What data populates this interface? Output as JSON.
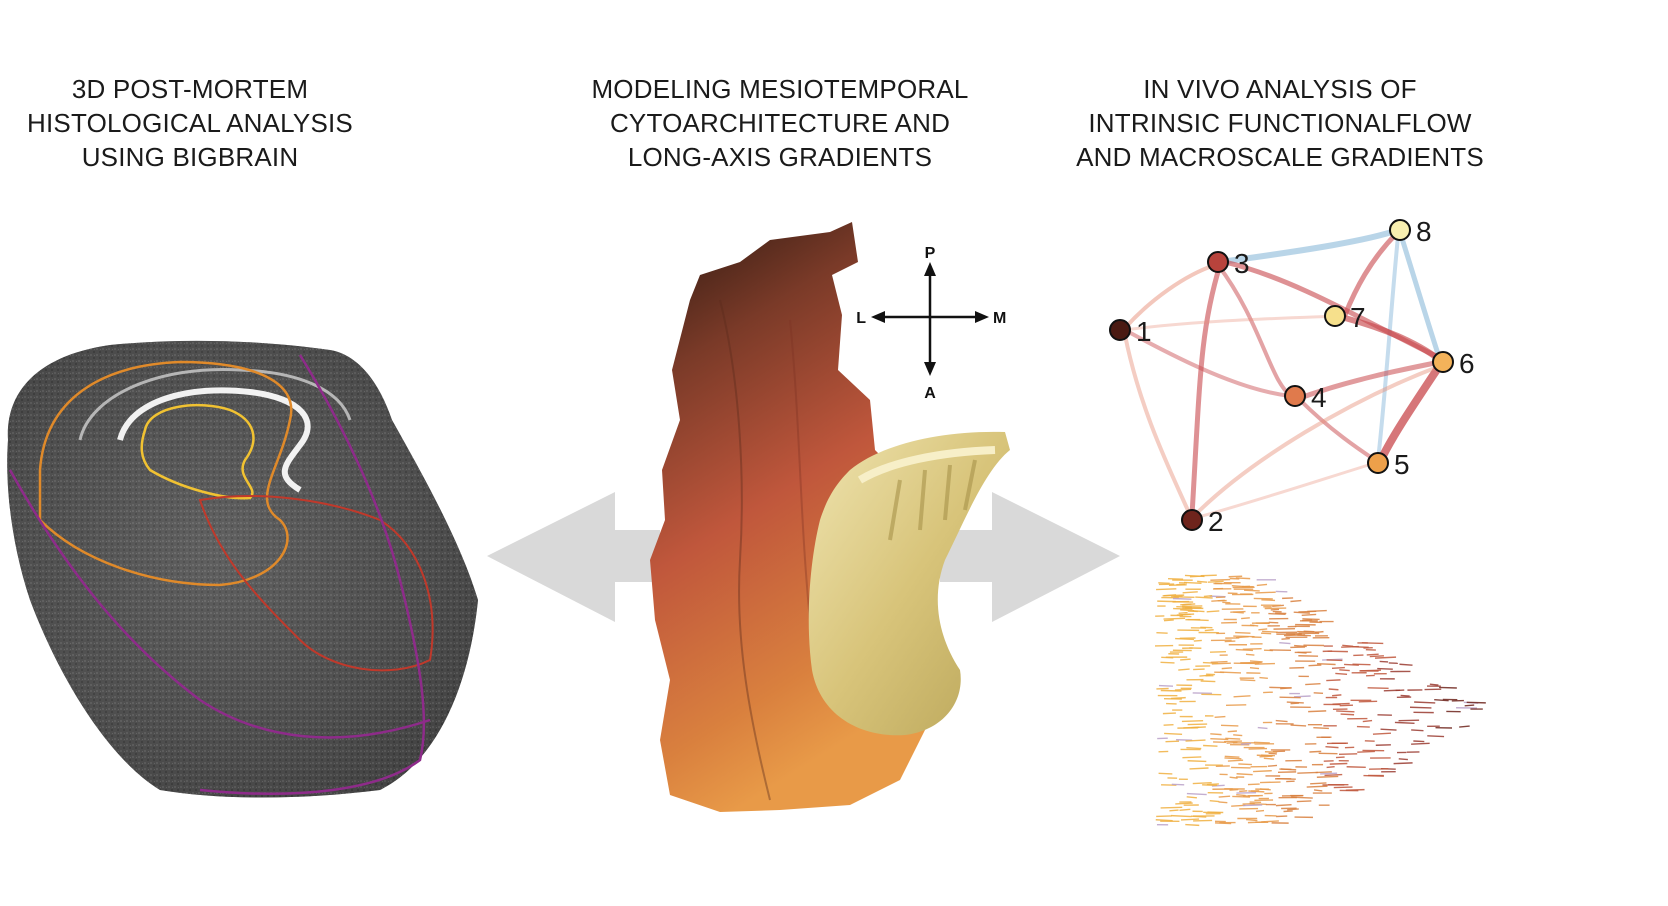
{
  "columns": {
    "left": {
      "lines": [
        "3D POST-MORTEM",
        "HISTOLOGICAL ANALYSIS",
        "USING BIGBRAIN"
      ]
    },
    "middle": {
      "lines": [
        "MODELING MESIOTEMPORAL",
        "CYTOARCHITECTURE AND",
        "LONG-AXIS GRADIENTS"
      ]
    },
    "right": {
      "lines": [
        "IN VIVO ANALYSIS OF",
        "INTRINSIC FUNCTIONALFLOW",
        "AND MACROSCALE GRADIENTS"
      ]
    }
  },
  "orientation": {
    "posterior": "P",
    "anterior": "A",
    "lateral": "L",
    "medial": "M"
  },
  "network": {
    "nodes": [
      {
        "id": "1",
        "label": "1",
        "color": "#4a1a12"
      },
      {
        "id": "2",
        "label": "2",
        "color": "#6e241c"
      },
      {
        "id": "3",
        "label": "3",
        "color": "#b8433c"
      },
      {
        "id": "4",
        "label": "4",
        "color": "#e07a4c"
      },
      {
        "id": "5",
        "label": "5",
        "color": "#eda04a"
      },
      {
        "id": "6",
        "label": "6",
        "color": "#f3b25a"
      },
      {
        "id": "7",
        "label": "7",
        "color": "#f6e08c"
      },
      {
        "id": "8",
        "label": "8",
        "color": "#f8efb0"
      }
    ]
  },
  "colors": {
    "arrow_gray": "#d9d9d9",
    "flow_red": "#c8484c",
    "flow_blue": "#7fb2d6",
    "histology_contours": [
      "#e08a2a",
      "#f1c232",
      "#c0392b",
      "#8e2b8a"
    ]
  }
}
